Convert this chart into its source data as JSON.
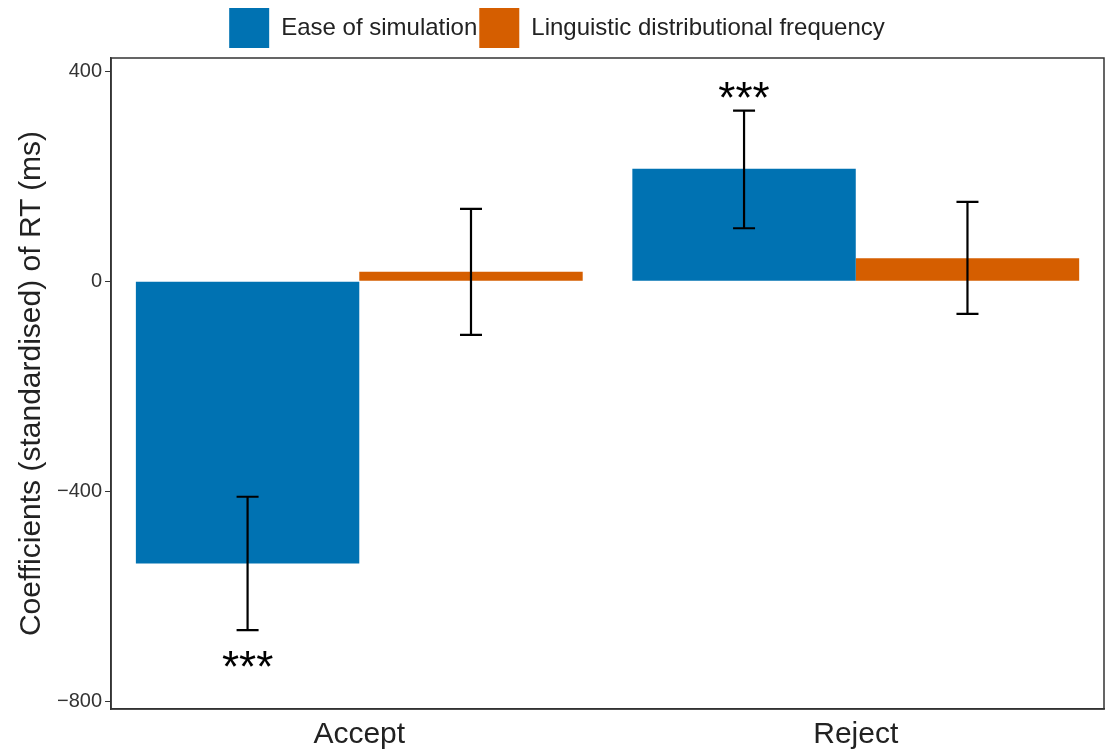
{
  "chart_data": {
    "type": "bar",
    "ylabel": "Coefficients (standardised) of RT (ms)",
    "categories": [
      "Accept",
      "Reject"
    ],
    "series": [
      {
        "name": "Ease of simulation",
        "color": "#0072b2",
        "values": [
          -537,
          214
        ],
        "errors": [
          [
            -664,
            -410
          ],
          [
            101,
            325
          ]
        ]
      },
      {
        "name": "Linguistic distributional frequency",
        "color": "#d55e00",
        "values": [
          18,
          44
        ],
        "errors": [
          [
            -102,
            138
          ],
          [
            -62,
            151
          ]
        ]
      }
    ],
    "ylim": [
      -814,
      425
    ],
    "yticks": [
      -800,
      -400,
      0,
      400
    ],
    "grid": false,
    "legend": "top",
    "annotations": [
      "***",
      "***"
    ]
  }
}
